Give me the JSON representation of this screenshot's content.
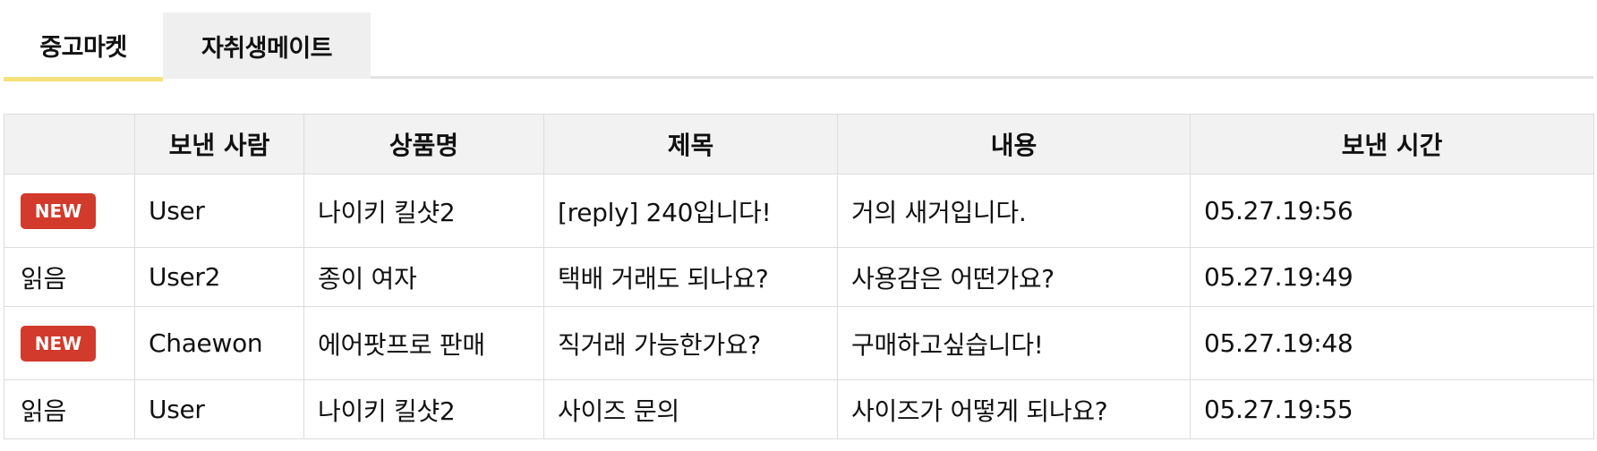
{
  "tabs": [
    {
      "label": "중고마켓",
      "active": true
    },
    {
      "label": "자취생메이트",
      "active": false
    }
  ],
  "table": {
    "headers": [
      "",
      "보낸 사람",
      "상품명",
      "제목",
      "내용",
      "보낸 시간"
    ],
    "rows": [
      {
        "status": "NEW",
        "sender": "User",
        "product": "나이키 킬샷2",
        "title": "[reply] 240입니다!",
        "content": "거의 새거입니다.",
        "time": "05.27.19:56"
      },
      {
        "status": "읽음",
        "sender": "User2",
        "product": "종이 여자",
        "title": "택배 거래도 되나요?",
        "content": "사용감은 어떤가요?",
        "time": "05.27.19:49"
      },
      {
        "status": "NEW",
        "sender": "Chaewon",
        "product": "에어팟프로 판매",
        "title": "직거래 가능한가요?",
        "content": "구매하고싶습니다!",
        "time": "05.27.19:48"
      },
      {
        "status": "읽음",
        "sender": "User",
        "product": "나이키 킬샷2",
        "title": "사이즈 문의",
        "content": "사이즈가 어떻게 되나요?",
        "time": "05.27.19:55"
      }
    ]
  },
  "colors": {
    "accent_underline": "#f5e27a",
    "new_badge": "#d23a2b",
    "header_bg": "#f2f2f2",
    "inactive_tab_bg": "#efefef"
  }
}
